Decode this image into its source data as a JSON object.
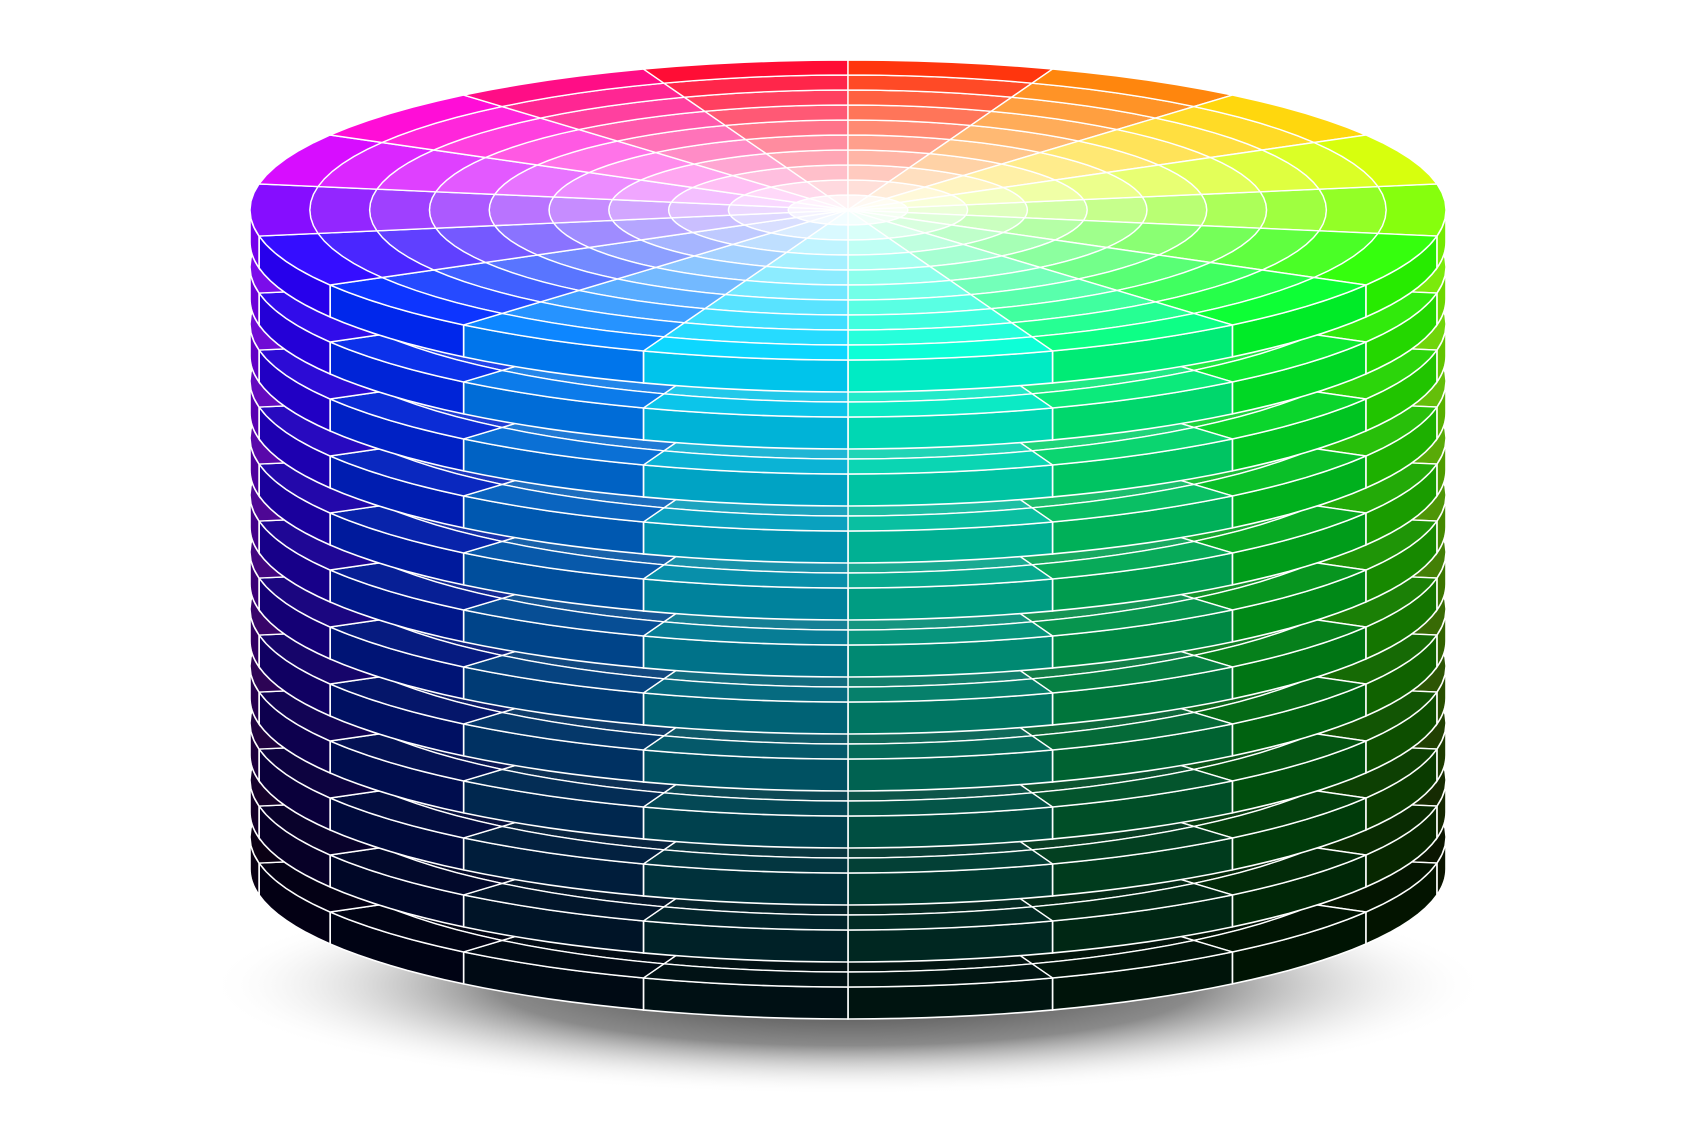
{
  "figure": {
    "type": "HSV color cylinder",
    "background": "#ffffff",
    "outline_color": "#ffffff",
    "shadow_color": "#555555"
  }
}
